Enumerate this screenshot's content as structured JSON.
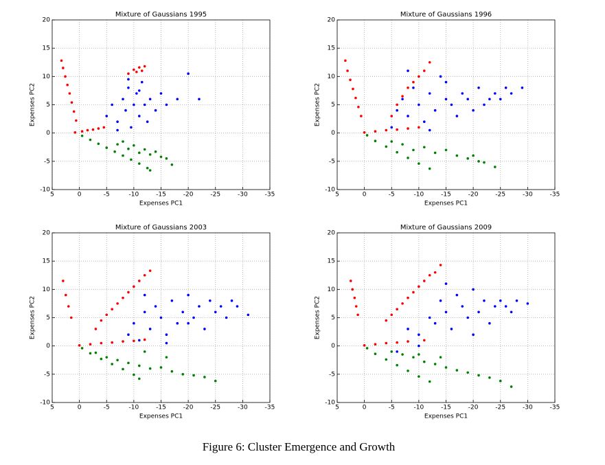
{
  "caption": "Figure 6: Cluster Emergence and Growth",
  "chart_data": [
    {
      "type": "scatter",
      "title": "Mixture of Gaussians 1995",
      "x_label": "Expenses PC1",
      "y_label": "Expenses PC2",
      "xlim": [
        5,
        -35
      ],
      "ylim": [
        -10,
        20
      ],
      "xticks": [
        5,
        0,
        -5,
        -10,
        -15,
        -20,
        -25,
        -30,
        -35
      ],
      "yticks": [
        -10,
        -5,
        0,
        5,
        10,
        15,
        20
      ],
      "grid": true,
      "series": [
        {
          "color": "#ff0000",
          "x": [
            0.6,
            1.0,
            1.4,
            1.8,
            2.2,
            2.6,
            3.0,
            3.3,
            0.8,
            -0.5,
            -1.5,
            -2.5,
            -3.5,
            -4.5,
            -9,
            -10,
            -10.5,
            -11,
            -11.5,
            -12
          ],
          "y": [
            2.2,
            3.8,
            5.4,
            7.0,
            8.5,
            10.0,
            11.5,
            12.8,
            0.1,
            0.3,
            0.5,
            0.6,
            0.8,
            1.0,
            10.5,
            11.2,
            10.8,
            11.6,
            11.0,
            11.8
          ]
        },
        {
          "color": "#0000ff",
          "x": [
            -5,
            -6,
            -7,
            -8,
            -8.5,
            -9,
            -9.5,
            -10,
            -10.5,
            -11,
            -11.5,
            -12,
            -12.5,
            -13,
            -14,
            -15,
            -16,
            -18,
            -20,
            -22,
            -7,
            -9,
            -11
          ],
          "y": [
            3,
            5,
            2,
            6,
            4,
            8,
            1,
            5,
            7,
            3,
            9,
            5,
            2,
            6,
            4,
            7,
            5,
            6,
            10.5,
            6,
            0.5,
            9.5,
            7.5
          ]
        },
        {
          "color": "#008000",
          "x": [
            -0.5,
            -2,
            -3.5,
            -5,
            -6.5,
            -8,
            -9.5,
            -11,
            -12.5,
            -13,
            -7,
            -8,
            -9,
            -10,
            -11,
            -12,
            -13,
            -14,
            -15,
            -16,
            -17
          ],
          "y": [
            -0.5,
            -1.2,
            -1.9,
            -2.6,
            -3.3,
            -4.0,
            -4.7,
            -5.4,
            -6.2,
            -6.6,
            -2,
            -1.5,
            -2.8,
            -2.2,
            -3.5,
            -2.9,
            -3.8,
            -3.3,
            -4.2,
            -4.5,
            -5.6
          ]
        }
      ]
    },
    {
      "type": "scatter",
      "title": "Mixture of Gaussians 1996",
      "x_label": "Expenses PC1",
      "y_label": "Expenses PC2",
      "xlim": [
        5,
        -35
      ],
      "ylim": [
        -10,
        20
      ],
      "xticks": [
        5,
        0,
        -5,
        -10,
        -15,
        -20,
        -25,
        -30,
        -35
      ],
      "yticks": [
        -10,
        -5,
        0,
        5,
        10,
        15,
        20
      ],
      "grid": true,
      "series": [
        {
          "color": "#ff0000",
          "x": [
            0.6,
            1.1,
            1.6,
            2.1,
            2.6,
            3.1,
            3.5,
            0,
            -2,
            -4,
            -6,
            -8,
            -10,
            -5,
            -6,
            -7,
            -8,
            -9,
            -10,
            -11,
            -12
          ],
          "y": [
            3,
            4.6,
            6.2,
            7.8,
            9.4,
            11,
            12.8,
            0.1,
            0.3,
            0.5,
            0.6,
            0.8,
            1.0,
            3,
            5,
            6.5,
            8,
            9,
            10,
            11,
            12.5
          ]
        },
        {
          "color": "#0000ff",
          "x": [
            -5,
            -6,
            -7,
            -8,
            -9,
            -10,
            -11,
            -12,
            -13,
            -14,
            -15,
            -16,
            -17,
            -18,
            -19,
            -20,
            -21,
            -22,
            -23,
            -24,
            -25,
            -26,
            -27,
            -29,
            -8,
            -12,
            -15
          ],
          "y": [
            1,
            4,
            6,
            3,
            8,
            5,
            2,
            7,
            4,
            10,
            6,
            5,
            3,
            7,
            6,
            4,
            8,
            5,
            6,
            7,
            6,
            8,
            7,
            8,
            11,
            0.5,
            9
          ]
        },
        {
          "color": "#008000",
          "x": [
            -0.5,
            -2,
            -4,
            -6,
            -8,
            -10,
            -12,
            -5,
            -7,
            -9,
            -11,
            -13,
            -15,
            -17,
            -19,
            -20,
            -21,
            -22,
            -24
          ],
          "y": [
            -0.4,
            -1.4,
            -2.4,
            -3.4,
            -4.4,
            -5.4,
            -6.3,
            -1.5,
            -2,
            -3,
            -2.5,
            -3.5,
            -3,
            -4,
            -4.5,
            -4,
            -5,
            -5.2,
            -6
          ]
        }
      ]
    },
    {
      "type": "scatter",
      "title": "Mixture of Gaussians 2003",
      "x_label": "Expenses PC1",
      "y_label": "Expenses PC2",
      "xlim": [
        5,
        -35
      ],
      "ylim": [
        -10,
        20
      ],
      "xticks": [
        5,
        0,
        -5,
        -10,
        -15,
        -20,
        -25,
        -30,
        -35
      ],
      "yticks": [
        -10,
        -5,
        0,
        5,
        10,
        15,
        20
      ],
      "grid": true,
      "series": [
        {
          "color": "#ff0000",
          "x": [
            1.5,
            2,
            2.5,
            3,
            0,
            -2,
            -4,
            -6,
            -8,
            -10,
            -12,
            -3,
            -4,
            -5,
            -6,
            -7,
            -8,
            -9,
            -10,
            -11,
            -12,
            -13
          ],
          "y": [
            5,
            7,
            9,
            11.5,
            0.1,
            0.3,
            0.5,
            0.6,
            0.8,
            0.9,
            1.1,
            3,
            4.5,
            5.5,
            6.5,
            7.5,
            8.5,
            9.5,
            10.5,
            11.5,
            12.5,
            13.3
          ]
        },
        {
          "color": "#0000ff",
          "x": [
            -9,
            -10,
            -11,
            -12,
            -13,
            -14,
            -15,
            -16,
            -17,
            -18,
            -19,
            -20,
            -21,
            -22,
            -23,
            -24,
            -25,
            -26,
            -27,
            -28,
            -29,
            -31,
            -12,
            -16,
            -20
          ],
          "y": [
            2,
            4,
            1,
            6,
            3,
            7,
            5,
            2,
            8,
            4,
            6,
            9,
            5,
            7,
            3,
            8,
            6,
            7,
            5,
            8,
            7,
            5.5,
            9,
            0.5,
            4
          ]
        },
        {
          "color": "#008000",
          "x": [
            -0.5,
            -2,
            -4,
            -6,
            -8,
            -10,
            -11,
            -3,
            -5,
            -7,
            -9,
            -11,
            -13,
            -15,
            -17,
            -19,
            -21,
            -23,
            -25,
            -12,
            -16
          ],
          "y": [
            -0.4,
            -1.3,
            -2.3,
            -3.2,
            -4.1,
            -5.1,
            -5.8,
            -1.2,
            -2,
            -2.5,
            -3,
            -3.5,
            -4,
            -3.8,
            -4.5,
            -5,
            -5.2,
            -5.5,
            -6.2,
            -1,
            -2
          ]
        }
      ]
    },
    {
      "type": "scatter",
      "title": "Mixture of Gaussians 2009",
      "x_label": "Expenses PC1",
      "y_label": "Expenses PC2",
      "xlim": [
        5,
        -35
      ],
      "ylim": [
        -10,
        20
      ],
      "xticks": [
        5,
        0,
        -5,
        -10,
        -15,
        -20,
        -25,
        -30,
        -35
      ],
      "yticks": [
        -10,
        -5,
        0,
        5,
        10,
        15,
        20
      ],
      "grid": true,
      "series": [
        {
          "color": "#ff0000",
          "x": [
            1.2,
            1.5,
            1.8,
            2.2,
            2.5,
            0,
            -2,
            -4,
            -6,
            -8,
            -11,
            -4,
            -5,
            -6,
            -7,
            -8,
            -9,
            -10,
            -11,
            -12,
            -13,
            -14
          ],
          "y": [
            5.5,
            7,
            8.5,
            10,
            11.5,
            0.1,
            0.3,
            0.5,
            0.6,
            0.8,
            1,
            4.5,
            5.5,
            6.5,
            7.5,
            8.5,
            9.5,
            10.5,
            11.5,
            12.5,
            13,
            14.3
          ]
        },
        {
          "color": "#0000ff",
          "x": [
            -6,
            -8,
            -10,
            -12,
            -13,
            -14,
            -15,
            -16,
            -17,
            -18,
            -19,
            -20,
            -21,
            -22,
            -23,
            -24,
            -25,
            -26,
            -27,
            -28,
            -30,
            -10,
            -15,
            -20
          ],
          "y": [
            -1,
            3,
            2,
            5,
            4,
            8,
            6,
            3,
            9,
            7,
            5,
            10,
            6,
            8,
            4,
            7,
            8,
            7,
            6,
            8,
            7.5,
            0,
            11,
            2
          ]
        },
        {
          "color": "#008000",
          "x": [
            -0.5,
            -2,
            -4,
            -6,
            -8,
            -10,
            -12,
            -5,
            -7,
            -9,
            -11,
            -13,
            -15,
            -17,
            -19,
            -21,
            -23,
            -25,
            -27,
            -10,
            -14
          ],
          "y": [
            -0.4,
            -1.4,
            -2.4,
            -3.4,
            -4.4,
            -5.4,
            -6.3,
            -1,
            -1.5,
            -2,
            -2.8,
            -3.2,
            -3.8,
            -4.3,
            -4.7,
            -5.2,
            -5.6,
            -6.2,
            -7.2,
            -1.5,
            -2
          ]
        }
      ]
    }
  ]
}
